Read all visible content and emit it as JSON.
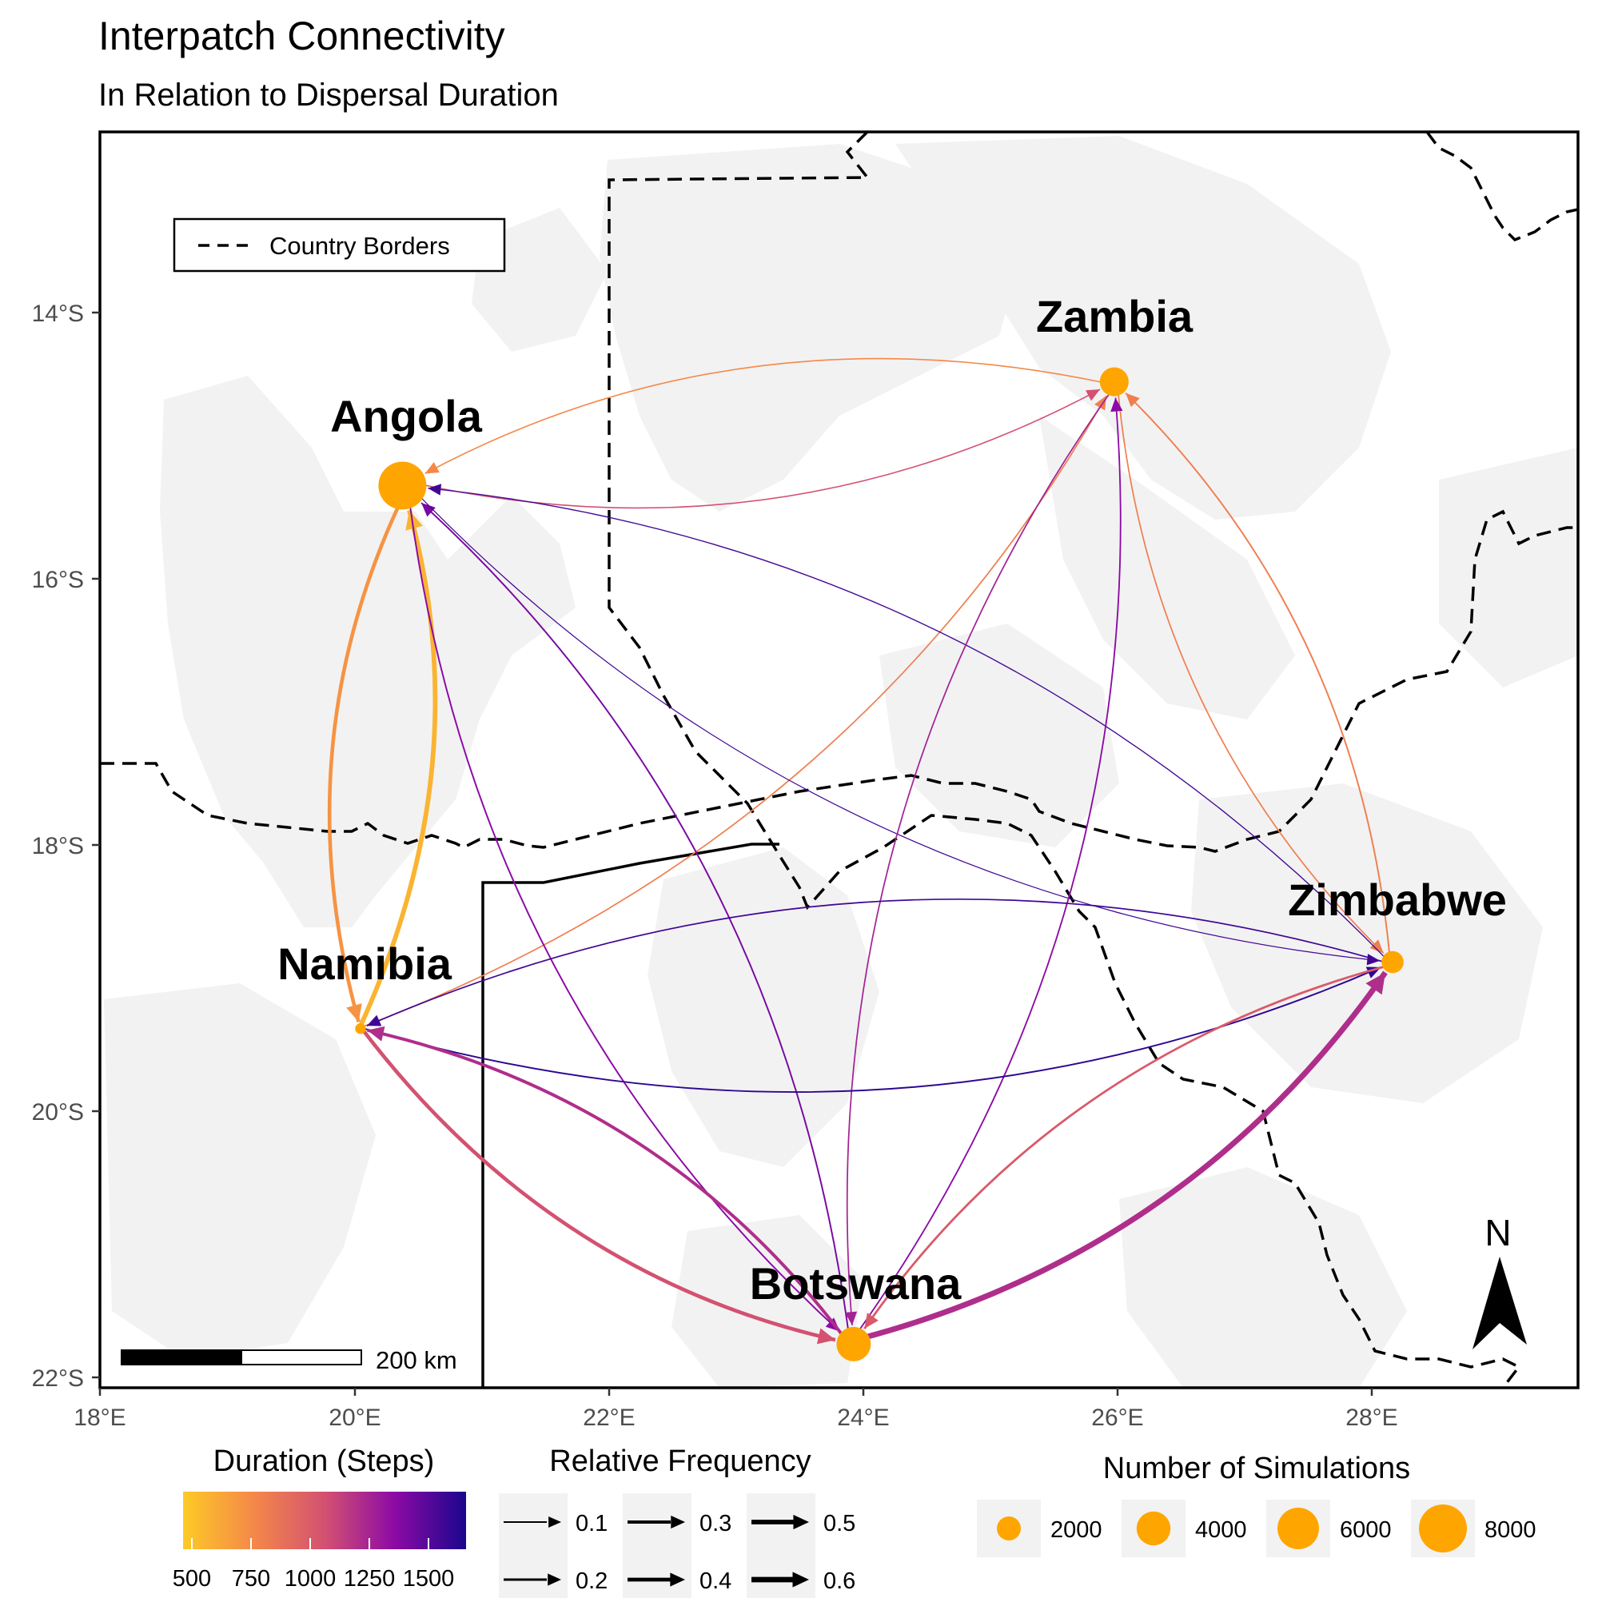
{
  "title": "Interpatch Connectivity",
  "subtitle": "In Relation to Dispersal Duration",
  "axes": {
    "x_ticks": [
      "18°E",
      "20°E",
      "22°E",
      "24°E",
      "26°E",
      "28°E"
    ],
    "y_ticks": [
      "14°S",
      "16°S",
      "18°S",
      "20°S",
      "22°S"
    ]
  },
  "border_legend": {
    "label": "Country Borders"
  },
  "scalebar": {
    "label": "200 km"
  },
  "north_arrow": {
    "label": "N"
  },
  "patches": [
    {
      "name": "Angola",
      "lon": 20.38,
      "lat": -15.3,
      "simulations": 8000
    },
    {
      "name": "Zambia",
      "lon": 25.98,
      "lat": -14.52,
      "simulations": 2900
    },
    {
      "name": "Namibia",
      "lon": 20.05,
      "lat": -19.38,
      "simulations": 400
    },
    {
      "name": "Zimbabwe",
      "lon": 28.17,
      "lat": -18.88,
      "simulations": 1700
    },
    {
      "name": "Botswana",
      "lon": 23.93,
      "lat": -21.75,
      "simulations": 4100
    }
  ],
  "legends": {
    "duration": {
      "title": "Duration (Steps)",
      "ticks": [
        "500",
        "750",
        "1000",
        "1250",
        "1500"
      ],
      "range": [
        400,
        1600
      ]
    },
    "frequency": {
      "title": "Relative Frequency",
      "values": [
        "0.1",
        "0.2",
        "0.3",
        "0.4",
        "0.5",
        "0.6"
      ]
    },
    "simulations": {
      "title": "Number of Simulations",
      "values": [
        "2000",
        "4000",
        "6000",
        "8000"
      ]
    }
  },
  "colors": {
    "patch": "#ffa500",
    "land": "#f2f2f2"
  },
  "chart_data": {
    "type": "network-map",
    "xlim": [
      18,
      29.6
    ],
    "ylim": [
      -22.1,
      -12.1
    ],
    "edges": [
      {
        "from": "Zambia",
        "to": "Angola",
        "duration": 700,
        "frequency": 0.05
      },
      {
        "from": "Angola",
        "to": "Zambia",
        "duration": 1000,
        "frequency": 0.05
      },
      {
        "from": "Namibia",
        "to": "Zambia",
        "duration": 750,
        "frequency": 0.06
      },
      {
        "from": "Zimbabwe",
        "to": "Zambia",
        "duration": 750,
        "frequency": 0.08
      },
      {
        "from": "Zambia",
        "to": "Zimbabwe",
        "duration": 750,
        "frequency": 0.06
      },
      {
        "from": "Angola",
        "to": "Namibia",
        "duration": 650,
        "frequency": 0.3
      },
      {
        "from": "Namibia",
        "to": "Angola",
        "duration": 500,
        "frequency": 0.4
      },
      {
        "from": "Angola",
        "to": "Botswana",
        "duration": 1300,
        "frequency": 0.08
      },
      {
        "from": "Botswana",
        "to": "Angola",
        "duration": 1350,
        "frequency": 0.08
      },
      {
        "from": "Zimbabwe",
        "to": "Angola",
        "duration": 1500,
        "frequency": 0.03
      },
      {
        "from": "Angola",
        "to": "Zimbabwe",
        "duration": 1500,
        "frequency": 0.02
      },
      {
        "from": "Botswana",
        "to": "Zambia",
        "duration": 1300,
        "frequency": 0.07
      },
      {
        "from": "Zambia",
        "to": "Botswana",
        "duration": 1200,
        "frequency": 0.06
      },
      {
        "from": "Namibia",
        "to": "Zimbabwe",
        "duration": 1550,
        "frequency": 0.08
      },
      {
        "from": "Zimbabwe",
        "to": "Namibia",
        "duration": 1500,
        "frequency": 0.06
      },
      {
        "from": "Namibia",
        "to": "Botswana",
        "duration": 1000,
        "frequency": 0.3
      },
      {
        "from": "Botswana",
        "to": "Namibia",
        "duration": 1150,
        "frequency": 0.25
      },
      {
        "from": "Botswana",
        "to": "Zimbabwe",
        "duration": 1150,
        "frequency": 0.5
      },
      {
        "from": "Zimbabwe",
        "to": "Botswana",
        "duration": 950,
        "frequency": 0.15
      }
    ]
  }
}
